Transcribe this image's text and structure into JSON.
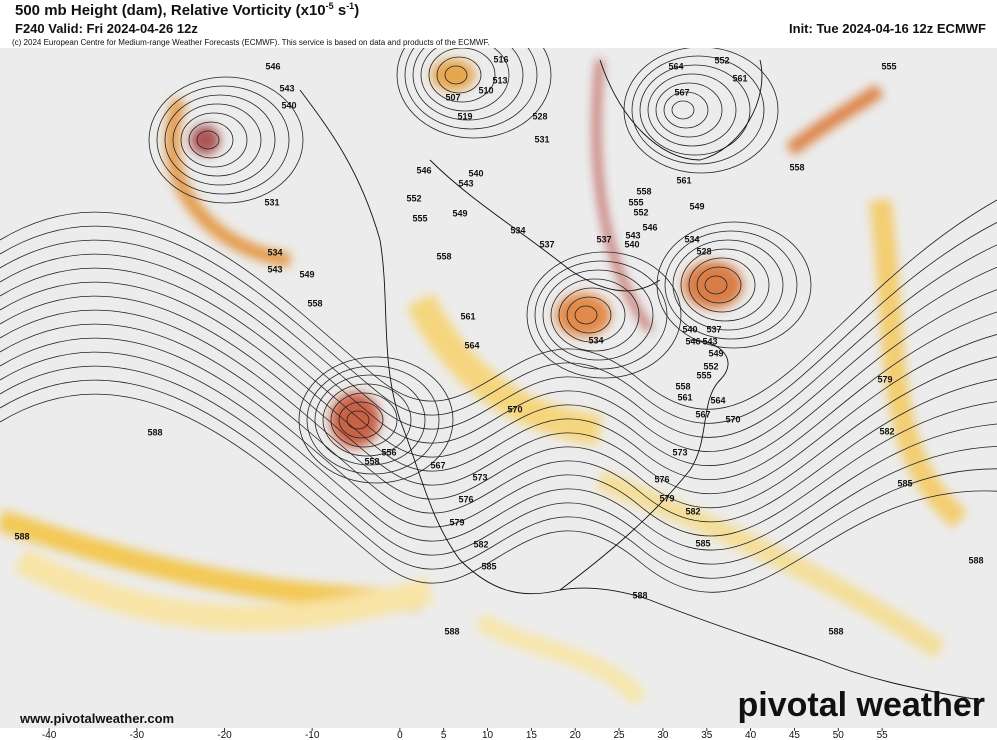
{
  "header": {
    "title": [
      "500 mb Height (dam), Relative Vorticity (x10",
      "-5",
      " s",
      "-1",
      ")"
    ],
    "valid": "F240 Valid: Fri 2024-04-26 12z",
    "init": "Init: Tue 2024-04-16 12z ECMWF",
    "copyright": "(c) 2024 European Centre for Medium-range Weather Forecasts (ECMWF). This service is based on data and products of the ECMWF."
  },
  "map": {
    "contour_labels": [
      546,
      543,
      540,
      516,
      513,
      510,
      507,
      519,
      531,
      534,
      543,
      549,
      558,
      552,
      555,
      558,
      546,
      543,
      540,
      549,
      534,
      537,
      537,
      531,
      528,
      564,
      567,
      561,
      552,
      555,
      558,
      561,
      558,
      555,
      552,
      549,
      546,
      543,
      540,
      534,
      528,
      534,
      540,
      537,
      546,
      543,
      549,
      552,
      555,
      558,
      561,
      564,
      567,
      570,
      570,
      573,
      576,
      579,
      582,
      585,
      573,
      576,
      579,
      582,
      585,
      567,
      556,
      558,
      579,
      582,
      585,
      588,
      588,
      588,
      588,
      588,
      588,
      561,
      564
    ]
  },
  "footer": {
    "website": "www.pivotalweather.com",
    "logo": "pivotal weather"
  },
  "colorbar": {
    "xlim": [
      -45.6,
      68.1
    ],
    "xticks": [
      -40,
      -30,
      -20,
      -10,
      0,
      5,
      10,
      15,
      20,
      25,
      30,
      35,
      40,
      45,
      50,
      55
    ]
  }
}
